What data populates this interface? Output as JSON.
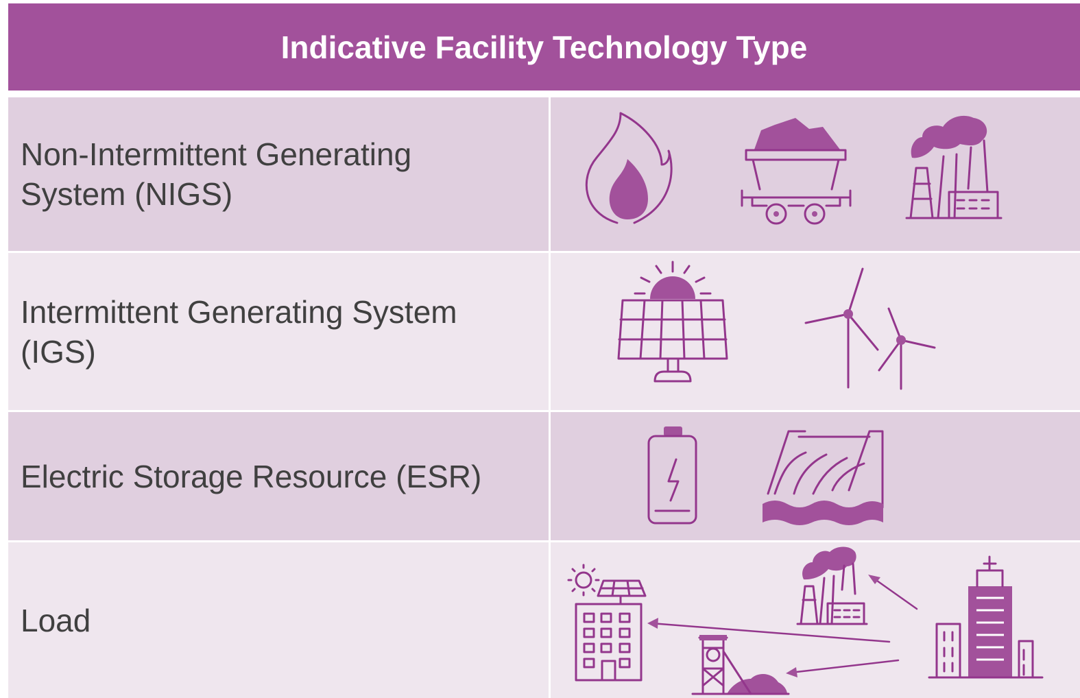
{
  "table": {
    "title": "Indicative Facility Technology Type",
    "rows": [
      [
        "Non-Intermittent Generating System (NIGS)"
      ],
      [
        "Intermittent Generating System (IGS)"
      ],
      [
        "Electric Storage Resource (ESR)"
      ],
      [
        "Load"
      ]
    ]
  }
}
